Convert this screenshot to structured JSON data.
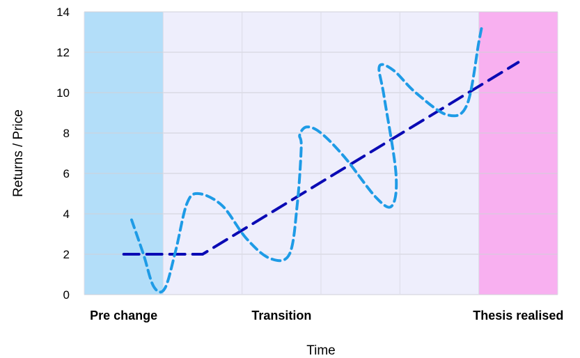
{
  "chart_data": {
    "type": "line",
    "title": "",
    "xlabel": "Time",
    "ylabel": "Returns / Price",
    "ylim": [
      0,
      14
    ],
    "yticks": [
      0,
      2,
      4,
      6,
      8,
      10,
      12,
      14
    ],
    "grid": true,
    "x_range": [
      0,
      6
    ],
    "categories": [
      {
        "label": "Pre change",
        "x": 0.5
      },
      {
        "label": "Transition",
        "x": 2.5
      },
      {
        "label": "Thesis realised",
        "x": 5.5
      }
    ],
    "bands": [
      {
        "name": "Pre change",
        "x_from": 0,
        "x_to": 1,
        "color": "#b3def9"
      },
      {
        "name": "Transition",
        "x_from": 1,
        "x_to": 5,
        "color": "#eeeefc"
      },
      {
        "name": "Thesis realised",
        "x_from": 5,
        "x_to": 6,
        "color": "#f8b0f0"
      }
    ],
    "series": [
      {
        "style": "dashed",
        "color": "#0a0ab4",
        "x": [
          0.5,
          1.5,
          5.5
        ],
        "y": [
          2.0,
          2.0,
          11.5
        ]
      },
      {
        "style": "dashed",
        "color": "#1e9be6",
        "x": [
          0.6,
          0.75,
          0.88,
          1.02,
          1.16,
          1.3,
          1.45,
          1.75,
          2.05,
          2.35,
          2.6,
          2.7,
          2.75,
          2.73,
          2.82,
          3.0,
          3.3,
          3.7,
          3.9,
          3.95,
          3.8,
          3.74,
          3.92,
          4.2,
          4.6,
          4.85,
          5.0,
          5.04
        ],
        "y": [
          3.7,
          2.0,
          0.4,
          0.3,
          2.2,
          4.5,
          5.0,
          4.4,
          2.8,
          1.8,
          2.0,
          4.5,
          7.3,
          7.9,
          8.3,
          8.0,
          6.8,
          4.8,
          4.4,
          6.0,
          9.8,
          11.3,
          11.1,
          10.0,
          8.9,
          9.4,
          12.5,
          13.3
        ]
      }
    ]
  }
}
